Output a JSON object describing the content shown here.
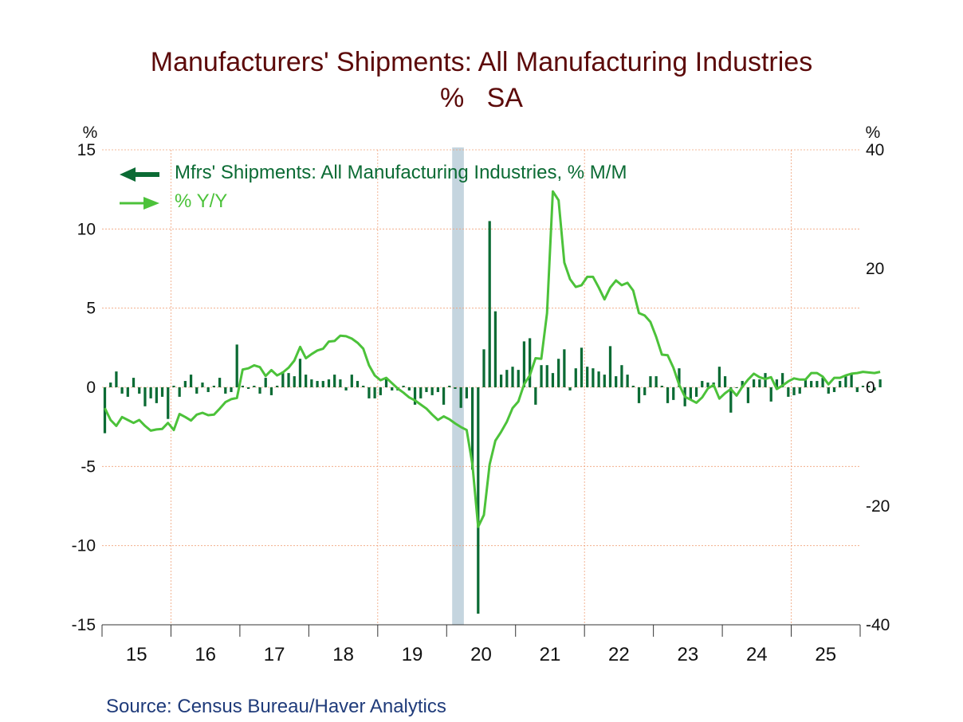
{
  "colors": {
    "title": "#5c0a0a",
    "mm": "#0b6b34",
    "yy": "#4cc23a",
    "grid": "#f0a27a",
    "recession": "#c5d5df",
    "source": "#1f3b7a"
  },
  "chart_data": {
    "type": "bar+line",
    "title": "Manufacturers' Shipments: All Manufacturing Industries",
    "subtitle": "%   SA",
    "left_axis_unit": "%",
    "right_axis_unit": "%",
    "left_ylim": [
      -15,
      15
    ],
    "right_ylim": [
      -40,
      40
    ],
    "left_ticks": [
      "15",
      "10",
      "5",
      "0",
      "-5",
      "-10",
      "-15"
    ],
    "right_ticks": [
      "40",
      "20",
      "0",
      "-20",
      "-40"
    ],
    "x_tick_labels": [
      "15",
      "16",
      "17",
      "18",
      "19",
      "20",
      "21",
      "22",
      "23",
      "24",
      "25"
    ],
    "grid": true,
    "recession_shading": {
      "from": 2020.08,
      "to": 2020.25
    },
    "legend_position": "top-left",
    "series": [
      {
        "name": "Mfrs' Shipments: All Manufacturing Industries, % M/M",
        "kind": "bar",
        "axis": "left",
        "start": 2015.0,
        "step": 0.0833333,
        "values": [
          -2.9,
          0.3,
          1.0,
          -0.4,
          -0.6,
          0.6,
          -0.4,
          -1.2,
          -0.7,
          -1.0,
          -0.6,
          -2.0,
          0.1,
          -0.6,
          0.4,
          0.8,
          -0.4,
          0.3,
          -0.3,
          0.1,
          0.6,
          -0.4,
          -0.3,
          2.7,
          0.1,
          -0.1,
          0.1,
          -0.4,
          0.6,
          -0.5,
          0.1,
          1.0,
          0.9,
          0.7,
          1.8,
          0.8,
          0.5,
          0.4,
          0.4,
          0.5,
          0.8,
          0.5,
          -0.2,
          0.8,
          0.4,
          0.1,
          -0.7,
          -0.7,
          -0.5,
          0.6,
          -0.2,
          -0.2,
          0.1,
          -0.2,
          -1.1,
          -0.7,
          -0.3,
          -0.5,
          -0.3,
          -1.1,
          0.1,
          -0.1,
          -1.3,
          -0.7,
          -5.2,
          -14.3,
          2.4,
          10.5,
          4.8,
          0.8,
          1.1,
          1.3,
          1.1,
          2.9,
          3.1,
          -1.1,
          1.4,
          1.4,
          0.9,
          1.8,
          2.4,
          -0.2,
          1.2,
          2.5,
          1.3,
          1.2,
          1.0,
          0.8,
          2.6,
          0.7,
          1.4,
          0.8,
          0.1,
          -1.0,
          -0.5,
          0.7,
          0.7,
          0.1,
          -1.0,
          -0.8,
          1.2,
          -1.2,
          -0.8,
          -0.6,
          0.4,
          0.3,
          0.3,
          1.3,
          0.7,
          -1.6,
          0.0,
          0.4,
          -1.0,
          0.5,
          0.5,
          0.9,
          -0.9,
          0.5,
          0.9,
          -0.6,
          -0.5,
          -0.4,
          0.5,
          0.4,
          0.4,
          0.6,
          -0.4,
          -0.3,
          0.4,
          0.7,
          0.9,
          -0.3,
          0.1,
          0.1,
          -0.2,
          0.5
        ]
      },
      {
        "name": "% Y/Y",
        "kind": "line",
        "axis": "right",
        "start": 2015.0,
        "step": 0.0833333,
        "values": [
          -3.5,
          -5.5,
          -6.5,
          -5.0,
          -5.5,
          -6.0,
          -5.5,
          -6.5,
          -7.3,
          -7.1,
          -7.0,
          -6.0,
          -7.2,
          -4.5,
          -5.0,
          -5.6,
          -4.6,
          -4.3,
          -4.7,
          -4.6,
          -3.6,
          -2.5,
          -2.0,
          -1.8,
          3.0,
          3.2,
          3.7,
          3.4,
          1.9,
          2.9,
          2.0,
          2.5,
          3.3,
          4.5,
          6.8,
          4.9,
          5.6,
          6.2,
          6.5,
          7.7,
          7.8,
          8.7,
          8.6,
          8.2,
          7.5,
          6.5,
          3.7,
          2.0,
          1.2,
          1.6,
          0.7,
          -0.2,
          -0.9,
          -1.7,
          -2.2,
          -2.9,
          -3.6,
          -4.6,
          -5.5,
          -4.9,
          -5.4,
          -6.1,
          -6.7,
          -7.2,
          -13.0,
          -23.5,
          -21.5,
          -13.0,
          -9.0,
          -7.5,
          -5.8,
          -3.5,
          -2.4,
          0.5,
          2.0,
          4.9,
          4.8,
          12.5,
          33.0,
          31.5,
          21.0,
          18.2,
          16.9,
          17.2,
          18.6,
          18.6,
          16.8,
          14.8,
          16.8,
          18.0,
          17.2,
          17.6,
          16.3,
          12.5,
          12.1,
          11.0,
          8.5,
          5.5,
          5.4,
          3.3,
          0.4,
          -1.6,
          -2.1,
          -2.6,
          -1.7,
          -0.2,
          0.4,
          -1.9,
          -1.0,
          -0.3,
          -1.4,
          0.1,
          1.3,
          2.3,
          1.7,
          1.4,
          1.7,
          -0.3,
          0.3,
          1.0,
          1.5,
          1.3,
          1.3,
          2.4,
          2.4,
          1.8,
          0.5,
          1.6,
          1.6,
          2.0,
          2.3,
          2.4,
          2.6,
          2.5,
          2.4,
          2.6
        ]
      }
    ]
  },
  "source_text": "Source:  Census Bureau/Haver Analytics"
}
